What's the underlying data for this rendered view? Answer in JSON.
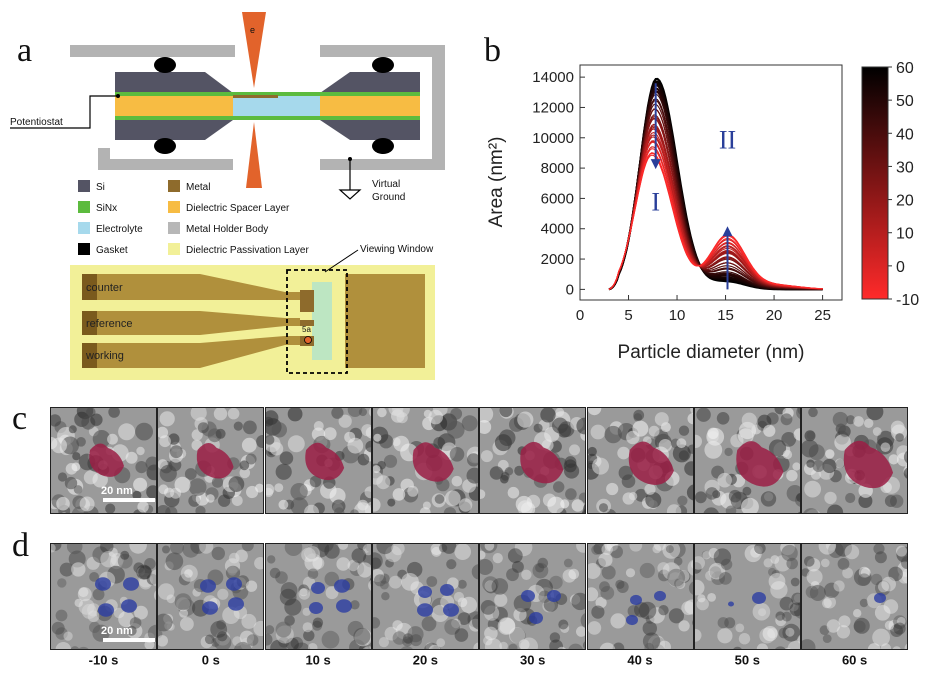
{
  "figure": {
    "panels": {
      "a": "a",
      "b": "b",
      "c": "c",
      "d": "d"
    }
  },
  "panel_a": {
    "electron_label": "e",
    "potentiostat_label": "Potentiostat",
    "ground_label_line1": "Virtual",
    "ground_label_line2": "Ground",
    "legend": [
      {
        "label": "Si",
        "color": "#545464"
      },
      {
        "label": "SiNx",
        "color": "#5cbb3e"
      },
      {
        "label": "Electrolyte",
        "color": "#a6d9ec"
      },
      {
        "label": "Gasket",
        "color": "#000000"
      },
      {
        "label": "Metal",
        "color": "#8e6b2c"
      },
      {
        "label": "Dielectric Spacer Layer",
        "color": "#f7bc43"
      },
      {
        "label": "Metal Holder Body",
        "color": "#b7b7b7"
      },
      {
        "label": "Dielectric Passivation Layer",
        "color": "#f2f098"
      }
    ],
    "chip": {
      "viewing_window_label": "Viewing Window",
      "electrodes": [
        "counter",
        "reference",
        "working"
      ],
      "marker_label": "5a"
    }
  },
  "chart_data": {
    "type": "line",
    "xlabel": "Particle diameter (nm)",
    "ylabel": "Area (nm²)",
    "xlim": [
      0,
      27
    ],
    "ylim": [
      -700,
      14800
    ],
    "xticks": [
      0,
      5,
      10,
      15,
      20,
      25
    ],
    "yticks": [
      0,
      2000,
      4000,
      6000,
      8000,
      10000,
      12000,
      14000
    ],
    "colorbar": {
      "range": [
        -10,
        60
      ],
      "ticks": [
        60,
        50,
        40,
        30,
        20,
        10,
        0,
        -10
      ],
      "colors": [
        "#000000",
        "#ff2a2a"
      ]
    },
    "annotations": [
      {
        "text": "I",
        "x": 7.8,
        "direction": "down",
        "arrow_from": 13600,
        "arrow_to": 8200,
        "text_y": 5200
      },
      {
        "text": "II",
        "x": 15.2,
        "direction": "up",
        "arrow_from": 0,
        "arrow_to": 3900,
        "text_y": 9300
      }
    ],
    "series_envelope": [
      {
        "name": "-10 s",
        "peak_x": 7.9,
        "peak_y": 13900,
        "shoulder_y": 500
      },
      {
        "name": "60 s",
        "peak_x": 7.4,
        "peak_y": 8800,
        "shoulder_y": 3600
      }
    ]
  },
  "panel_c": {
    "scale_bar_label": "20 nm",
    "particle_color": "#9b1f45"
  },
  "panel_d": {
    "scale_bar_label": "20 nm",
    "particle_color": "#2c3da3",
    "time_labels": [
      "-10 s",
      "0 s",
      "10 s",
      "20 s",
      "30 s",
      "40 s",
      "50 s",
      "60 s"
    ]
  }
}
